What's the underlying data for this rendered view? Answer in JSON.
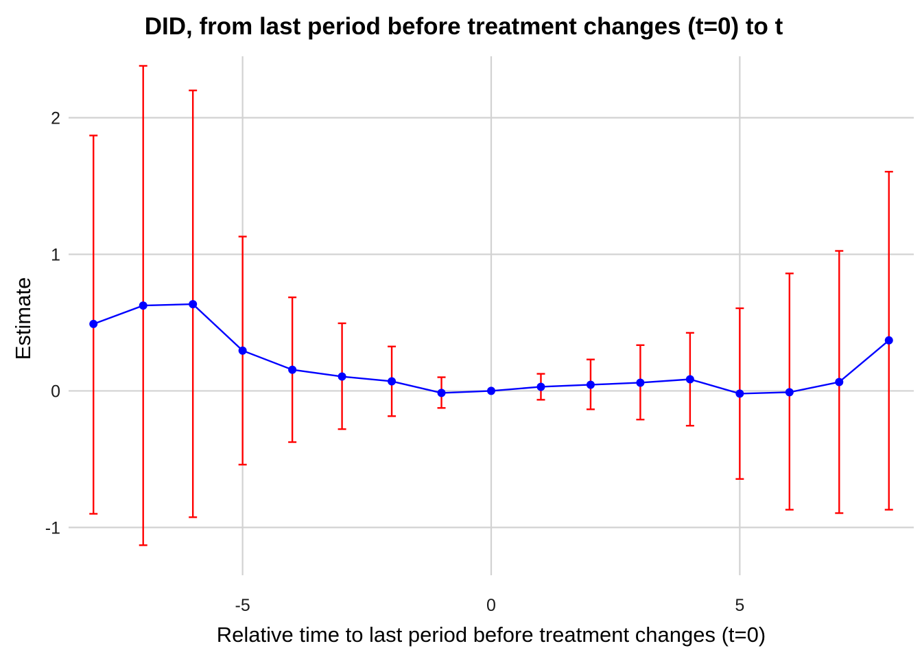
{
  "chart_data": {
    "type": "line",
    "title": "DID, from last period before treatment changes (t=0) to t",
    "xlabel": "Relative time to last period before treatment changes (t=0)",
    "ylabel": "Estimate",
    "xlim": [
      -8.5,
      8.5
    ],
    "ylim": [
      -1.35,
      2.45
    ],
    "x_ticks": [
      -5,
      0,
      5
    ],
    "x_tick_labels": [
      "-5",
      "0",
      "5"
    ],
    "y_ticks": [
      -1,
      0,
      1,
      2
    ],
    "y_tick_labels": [
      "-1",
      "0",
      "1",
      "2"
    ],
    "grid": true,
    "legend": false,
    "colors": {
      "estimate": "#0000ff",
      "interval": "#ff0000",
      "grid": "#d2d2d2"
    },
    "series": [
      {
        "x": [
          -8,
          -7,
          -6,
          -5,
          -4,
          -3,
          -2,
          -1,
          0,
          1,
          2,
          3,
          4,
          5,
          6,
          7,
          8
        ],
        "estimate": [
          0.49,
          0.625,
          0.635,
          0.295,
          0.155,
          0.105,
          0.07,
          -0.015,
          0.0,
          0.03,
          0.045,
          0.06,
          0.085,
          -0.02,
          -0.01,
          0.065,
          0.37
        ],
        "lower": [
          -0.9,
          -1.13,
          -0.925,
          -0.54,
          -0.375,
          -0.28,
          -0.185,
          -0.125,
          null,
          -0.065,
          -0.135,
          -0.21,
          -0.255,
          -0.645,
          -0.87,
          -0.895,
          -0.87
        ],
        "upper": [
          1.87,
          2.38,
          2.2,
          1.13,
          0.685,
          0.495,
          0.325,
          0.1,
          null,
          0.125,
          0.23,
          0.335,
          0.425,
          0.605,
          0.86,
          1.025,
          1.605
        ]
      }
    ]
  }
}
